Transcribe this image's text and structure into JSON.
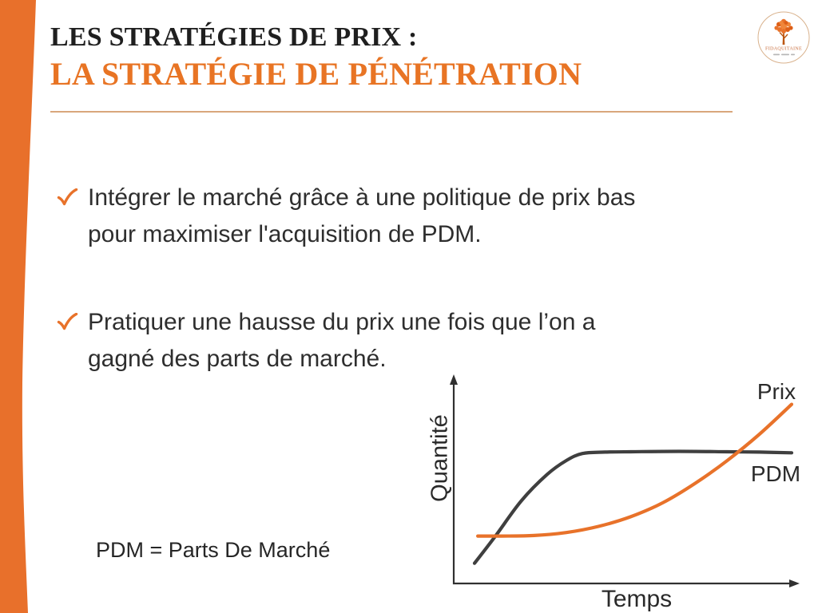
{
  "slide": {
    "header": {
      "title_line1": "LES STRATÉGIES DE PRIX :",
      "title_line2": "LA STRATÉGIE DE PÉNÉTRATION"
    },
    "logo": {
      "name": "FIDAQUITAINE"
    },
    "bullets": [
      {
        "marker": "✓",
        "text": "Intégrer le marché grâce à une politique de prix bas\npour maximiser l'acquisition de PDM."
      },
      {
        "marker": "✓",
        "text": "Pratiquer une hausse du prix une fois que l’on a\ngagné des parts de marché."
      }
    ],
    "note": "PDM = Parts De Marché",
    "colors": {
      "accent_orange": "#E8722A",
      "title_orange": "#E87424",
      "dark_text": "#2E2E2E",
      "rule_tan": "#D9A77C"
    }
  },
  "chart_data": {
    "type": "line",
    "title": "",
    "xlabel": "Temps",
    "ylabel": "Quantité",
    "x_range": [
      0,
      10
    ],
    "y_range": [
      0,
      100
    ],
    "grid": "off",
    "legend": "inline labels at right end of curves, no legend box",
    "axis_style": "conceptual axes with arrowheads, no ticks, no tick labels",
    "series": [
      {
        "name": "PDM",
        "color": "#3F3F3F",
        "x": [
          0.15,
          0.8,
          1.6,
          2.4,
          3.0,
          3.5,
          4.2,
          5.0,
          6.0,
          7.0,
          8.0,
          9.0,
          10.0
        ],
        "values": [
          6.5,
          22,
          42,
          57,
          65,
          69,
          69.8,
          70,
          70.2,
          70.2,
          70,
          69.8,
          69.4
        ]
      },
      {
        "name": "Prix",
        "color": "#E8722A",
        "x": [
          0.25,
          1.0,
          2.0,
          3.0,
          4.0,
          5.0,
          6.0,
          7.0,
          8.0,
          9.0,
          10.0
        ],
        "values": [
          22,
          22,
          22.3,
          24,
          27.5,
          33,
          41,
          52,
          65,
          80,
          97
        ]
      }
    ],
    "annotation": "PDM = Parts De Marché"
  }
}
